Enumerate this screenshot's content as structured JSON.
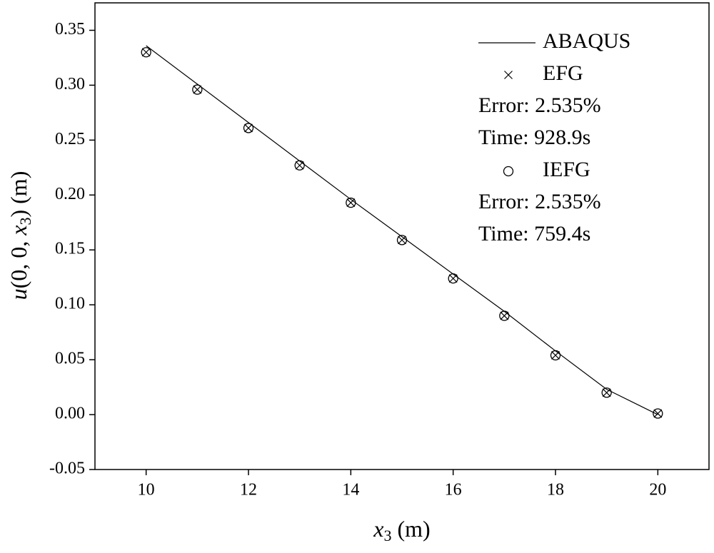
{
  "chart_data": {
    "type": "line",
    "xlabel": [
      {
        "text": "x",
        "italic": true,
        "sub": false
      },
      {
        "text": "3",
        "italic": false,
        "sub": true
      },
      {
        "text": " (m)",
        "italic": false,
        "sub": false
      }
    ],
    "ylabel": [
      {
        "text": "u",
        "italic": true,
        "sub": false
      },
      {
        "text": "(0, 0, ",
        "italic": false,
        "sub": false
      },
      {
        "text": "x",
        "italic": true,
        "sub": false
      },
      {
        "text": "3",
        "italic": false,
        "sub": true
      },
      {
        "text": ") (m)",
        "italic": false,
        "sub": false
      }
    ],
    "x": [
      10,
      11,
      12,
      13,
      14,
      15,
      16,
      17,
      18,
      19,
      20
    ],
    "series": [
      {
        "name": "ABAQUS",
        "color": "#000000",
        "marker": "line",
        "legend_notes": [],
        "values": [
          0.336,
          0.301,
          0.266,
          0.231,
          0.196,
          0.162,
          0.128,
          0.094,
          0.058,
          0.023,
          0.0
        ]
      },
      {
        "name": "EFG",
        "color": "#000000",
        "marker": "x",
        "legend_notes": [
          "Error: 2.535%",
          "Time: 928.9s"
        ],
        "values": [
          0.33,
          0.296,
          0.261,
          0.227,
          0.193,
          0.159,
          0.124,
          0.09,
          0.054,
          0.02,
          0.001
        ]
      },
      {
        "name": "IEFG",
        "color": "#000000",
        "marker": "circle",
        "legend_notes": [
          "Error: 2.535%",
          "Time: 759.4s"
        ],
        "values": [
          0.33,
          0.296,
          0.261,
          0.227,
          0.193,
          0.159,
          0.124,
          0.09,
          0.054,
          0.02,
          0.001
        ]
      }
    ],
    "xlim": [
      9,
      21
    ],
    "xticks": [
      10,
      12,
      14,
      16,
      18,
      20
    ],
    "ylim": [
      -0.05,
      0.375
    ],
    "yticks": [
      -0.05,
      {
        "value": 0,
        "label": "0.00"
      },
      0.05,
      {
        "value": 0.1,
        "label": "0.10"
      },
      0.15,
      {
        "value": 0.2,
        "label": "0.20"
      },
      0.25,
      {
        "value": 0.3,
        "label": "0.30"
      },
      0.35
    ],
    "grid": false,
    "legend": "upper right"
  }
}
